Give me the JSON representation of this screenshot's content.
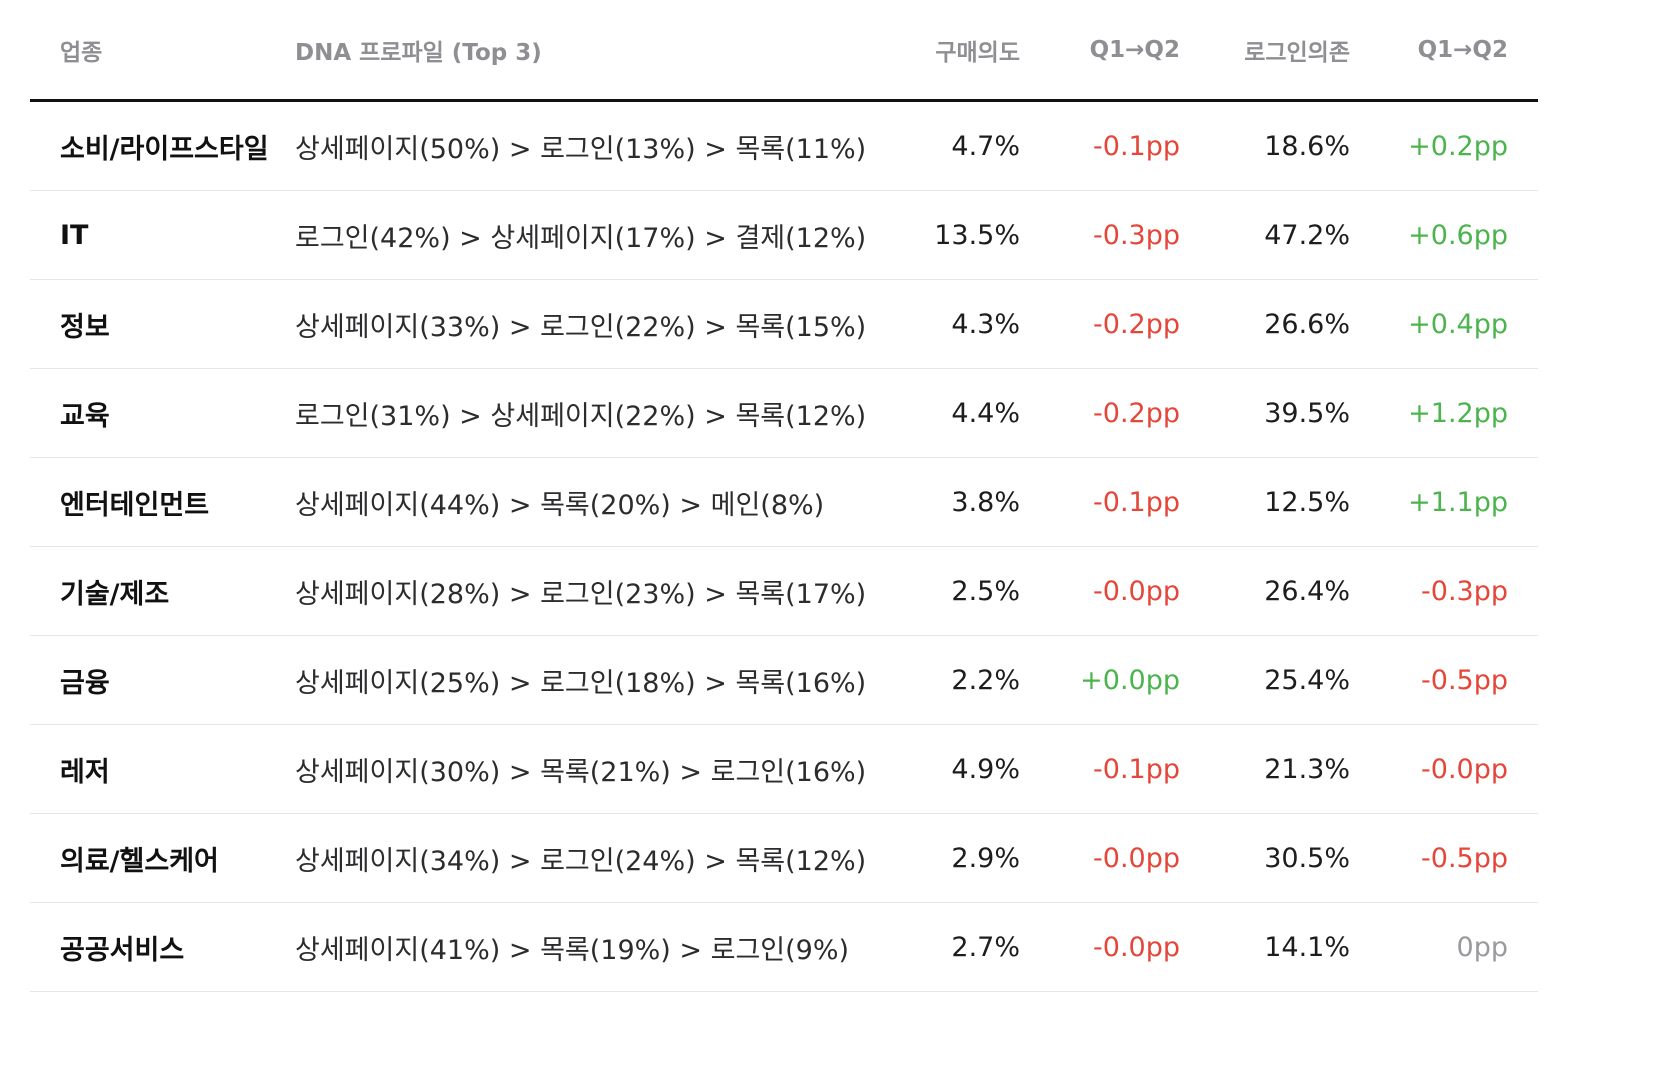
{
  "table": {
    "headers": {
      "industry": "업종",
      "dna": "DNA 프로파일 (Top 3)",
      "purchase_intent": "구매의도",
      "purchase_change": "Q1→Q2",
      "login_dependency": "로그인의존",
      "login_change": "Q1→Q2"
    },
    "rows": [
      {
        "industry": "소비/라이프스타일",
        "dna": "상세페이지(50%) > 로그인(13%) > 목록(11%)",
        "purchase": "4.7%",
        "purchase_change": "-0.1pp",
        "login": "18.6%",
        "login_change": "+0.2pp"
      },
      {
        "industry": "IT",
        "dna": "로그인(42%) > 상세페이지(17%) > 결제(12%)",
        "purchase": "13.5%",
        "purchase_change": "-0.3pp",
        "login": "47.2%",
        "login_change": "+0.6pp"
      },
      {
        "industry": "정보",
        "dna": "상세페이지(33%) > 로그인(22%) > 목록(15%)",
        "purchase": "4.3%",
        "purchase_change": "-0.2pp",
        "login": "26.6%",
        "login_change": "+0.4pp"
      },
      {
        "industry": "교육",
        "dna": "로그인(31%) > 상세페이지(22%) > 목록(12%)",
        "purchase": "4.4%",
        "purchase_change": "-0.2pp",
        "login": "39.5%",
        "login_change": "+1.2pp"
      },
      {
        "industry": "엔터테인먼트",
        "dna": "상세페이지(44%) > 목록(20%) > 메인(8%)",
        "purchase": "3.8%",
        "purchase_change": "-0.1pp",
        "login": "12.5%",
        "login_change": "+1.1pp"
      },
      {
        "industry": "기술/제조",
        "dna": "상세페이지(28%) > 로그인(23%) > 목록(17%)",
        "purchase": "2.5%",
        "purchase_change": "-0.0pp",
        "login": "26.4%",
        "login_change": "-0.3pp"
      },
      {
        "industry": "금융",
        "dna": "상세페이지(25%) > 로그인(18%) > 목록(16%)",
        "purchase": "2.2%",
        "purchase_change": "+0.0pp",
        "login": "25.4%",
        "login_change": "-0.5pp"
      },
      {
        "industry": "레저",
        "dna": "상세페이지(30%) > 목록(21%) > 로그인(16%)",
        "purchase": "4.9%",
        "purchase_change": "-0.1pp",
        "login": "21.3%",
        "login_change": "-0.0pp"
      },
      {
        "industry": "의료/헬스케어",
        "dna": "상세페이지(34%) > 로그인(24%) > 목록(12%)",
        "purchase": "2.9%",
        "purchase_change": "-0.0pp",
        "login": "30.5%",
        "login_change": "-0.5pp"
      },
      {
        "industry": "공공서비스",
        "dna": "상세페이지(41%) > 목록(19%) > 로그인(9%)",
        "purchase": "2.7%",
        "purchase_change": "-0.0pp",
        "login": "14.1%",
        "login_change": "0pp"
      }
    ]
  },
  "colors": {
    "negative": "#e5463a",
    "positive": "#4cb44c",
    "neutral": "#9a9a9e",
    "header_text": "#8e8e93",
    "header_rule": "#111111"
  }
}
